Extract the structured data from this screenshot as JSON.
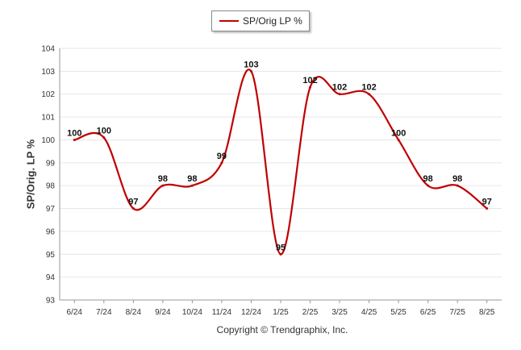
{
  "legend": {
    "label": "SP/Orig LP %"
  },
  "footer": {
    "copyright": "Copyright © Trendgraphix, Inc."
  },
  "colors": {
    "series": "#c00000",
    "grid": "#e6e6e6",
    "axis": "#999999"
  },
  "chart_data": {
    "type": "line",
    "title": "",
    "xlabel": "",
    "ylabel": "SP/Orig. LP %",
    "ylim": [
      93,
      104
    ],
    "yticks": [
      93,
      94,
      95,
      96,
      97,
      98,
      99,
      100,
      101,
      102,
      103,
      104
    ],
    "grid": true,
    "legend_position": "top-center",
    "categories": [
      "6/24",
      "7/24",
      "8/24",
      "9/24",
      "10/24",
      "11/24",
      "12/24",
      "1/25",
      "2/25",
      "3/25",
      "4/25",
      "5/25",
      "6/25",
      "7/25",
      "8/25"
    ],
    "series": [
      {
        "name": "SP/Orig LP %",
        "values": [
          100,
          100.1,
          97,
          98,
          98,
          99,
          103,
          95,
          102.3,
          102,
          102,
          100,
          98,
          98,
          97
        ],
        "labels": [
          "100",
          "100",
          "97",
          "98",
          "98",
          "99",
          "103",
          "95",
          "102",
          "102",
          "102",
          "100",
          "98",
          "98",
          "97"
        ]
      }
    ]
  }
}
